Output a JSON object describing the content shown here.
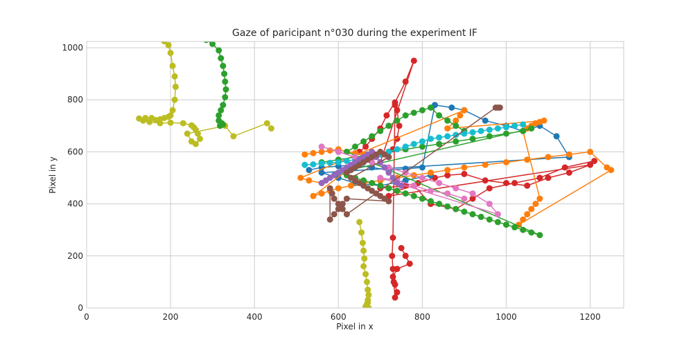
{
  "chart_data": {
    "type": "scatter",
    "title": "Gaze of paricipant n°030 during the experiment IF",
    "xlabel": "Pixel in x",
    "ylabel": "Pixel in y",
    "xlim": [
      0,
      1280
    ],
    "ylim": [
      0,
      1024
    ],
    "xticks": [
      0,
      200,
      400,
      600,
      800,
      1000,
      1200
    ],
    "yticks": [
      0,
      200,
      400,
      600,
      800,
      1000
    ],
    "grid": true,
    "markers": true,
    "lines": true,
    "series": [
      {
        "color": "#bcbd22",
        "x": [
          170,
          175,
          185,
          195,
          200,
          205,
          210,
          212,
          210,
          205,
          200,
          195,
          185,
          175,
          165,
          155,
          140,
          125,
          135,
          150,
          175,
          200,
          230,
          250,
          255,
          260,
          265,
          270,
          260,
          250,
          240,
          330,
          350,
          430,
          440
        ],
        "y": [
          1040,
          1035,
          1025,
          1010,
          980,
          930,
          890,
          850,
          800,
          760,
          740,
          735,
          730,
          725,
          722,
          730,
          730,
          728,
          720,
          715,
          710,
          712,
          710,
          702,
          695,
          685,
          670,
          650,
          630,
          640,
          670,
          700,
          660,
          710,
          690
        ]
      },
      {
        "color": "#2ca02c",
        "x": [
          270,
          285,
          300,
          315,
          320,
          325,
          328,
          330,
          332,
          330,
          325,
          320,
          315,
          315,
          318,
          322,
          325
        ],
        "y": [
          1040,
          1030,
          1015,
          990,
          960,
          930,
          900,
          870,
          840,
          810,
          780,
          760,
          740,
          720,
          700,
          710,
          705
        ]
      },
      {
        "color": "#bcbd22",
        "x": [
          650,
          655,
          658,
          660,
          662,
          660,
          665,
          668,
          670,
          672,
          670,
          668,
          665,
          668,
          670,
          672
        ],
        "y": [
          330,
          290,
          250,
          220,
          190,
          160,
          130,
          100,
          70,
          50,
          30,
          15,
          5,
          10,
          20,
          0
        ]
      },
      {
        "color": "#d62728",
        "x": [
          650,
          665,
          680,
          700,
          715,
          735,
          760,
          780,
          700,
          720,
          730,
          740,
          745,
          740,
          735,
          730,
          728,
          730,
          732,
          735
        ],
        "y": [
          600,
          620,
          650,
          690,
          740,
          790,
          870,
          950,
          560,
          580,
          610,
          650,
          700,
          760,
          780,
          270,
          200,
          150,
          100,
          40
        ]
      },
      {
        "color": "#d62728",
        "x": [
          700,
          760,
          790,
          830,
          860,
          900,
          950,
          1000,
          1050,
          1100,
          1150,
          1200,
          720,
          740,
          780,
          820,
          880,
          920,
          960,
          1020,
          1080,
          1140,
          1210
        ],
        "y": [
          460,
          470,
          480,
          500,
          510,
          515,
          490,
          480,
          470,
          500,
          520,
          550,
          430,
          450,
          470,
          400,
          380,
          420,
          460,
          480,
          500,
          540,
          565
        ]
      },
      {
        "color": "#d62728",
        "x": [
          750,
          760,
          770,
          740,
          730,
          735,
          740
        ],
        "y": [
          230,
          200,
          170,
          150,
          120,
          90,
          60
        ]
      },
      {
        "color": "#1f77b4",
        "x": [
          530,
          560,
          600,
          640,
          680,
          720,
          760,
          800,
          830,
          870,
          900,
          950,
          1000,
          1040,
          1080,
          1120,
          1150,
          560,
          600,
          640,
          700,
          760,
          820
        ],
        "y": [
          530,
          540,
          545,
          550,
          540,
          530,
          535,
          540,
          780,
          770,
          760,
          720,
          700,
          680,
          700,
          660,
          580,
          520,
          500,
          480,
          470,
          490,
          510
        ]
      },
      {
        "color": "#ff7f0e",
        "x": [
          520,
          540,
          560,
          580,
          600,
          620,
          640,
          660,
          680,
          540,
          560,
          580,
          600,
          630,
          660,
          700,
          740,
          780,
          820,
          860,
          900,
          950,
          1000,
          1050,
          1100,
          1150,
          1200,
          1240,
          1250,
          1030,
          1040,
          1050,
          1060,
          1070,
          1080,
          1040,
          1050,
          1060,
          1070,
          1080,
          1090,
          860,
          880,
          890,
          900,
          510,
          530,
          560
        ],
        "y": [
          590,
          595,
          600,
          605,
          610,
          600,
          595,
          590,
          600,
          430,
          440,
          450,
          460,
          470,
          480,
          490,
          500,
          510,
          520,
          530,
          540,
          550,
          560,
          570,
          580,
          590,
          600,
          540,
          530,
          320,
          340,
          360,
          380,
          400,
          420,
          680,
          690,
          700,
          710,
          715,
          720,
          690,
          720,
          740,
          760,
          500,
          490,
          480
        ]
      },
      {
        "color": "#2ca02c",
        "x": [
          560,
          600,
          640,
          680,
          720,
          760,
          800,
          840,
          880,
          920,
          960,
          1000,
          1040,
          1060,
          600,
          620,
          640,
          660,
          680,
          700,
          720,
          740,
          760,
          780,
          800,
          820,
          840,
          860,
          880,
          900,
          920,
          940,
          960,
          980,
          1000,
          1020,
          1040,
          1060,
          1080,
          620,
          640,
          660,
          680,
          700,
          720,
          740,
          760,
          780,
          800,
          820,
          840,
          860,
          880,
          900
        ],
        "y": [
          560,
          570,
          580,
          590,
          600,
          610,
          620,
          630,
          640,
          650,
          660,
          670,
          680,
          690,
          520,
          510,
          500,
          490,
          480,
          470,
          460,
          450,
          440,
          430,
          420,
          410,
          400,
          390,
          380,
          370,
          360,
          350,
          340,
          330,
          320,
          310,
          300,
          290,
          280,
          600,
          620,
          640,
          660,
          680,
          700,
          720,
          740,
          750,
          760,
          770,
          740,
          720,
          700,
          680
        ]
      },
      {
        "color": "#17becf",
        "x": [
          520,
          540,
          560,
          580,
          600,
          620,
          640,
          660,
          680,
          700,
          720,
          740,
          760,
          780,
          800,
          820,
          840,
          860,
          880,
          900,
          920,
          940,
          960,
          980,
          1000,
          1020,
          1040
        ],
        "y": [
          550,
          552,
          555,
          558,
          560,
          565,
          570,
          575,
          580,
          590,
          600,
          610,
          620,
          630,
          640,
          650,
          655,
          660,
          665,
          670,
          675,
          680,
          685,
          690,
          695,
          700,
          705
        ]
      },
      {
        "color": "#e377c2",
        "x": [
          560,
          600,
          640,
          680,
          720,
          760,
          800,
          840,
          880,
          920,
          960,
          980,
          700,
          740,
          780,
          820,
          860,
          900
        ],
        "y": [
          620,
          600,
          580,
          560,
          540,
          520,
          500,
          480,
          460,
          440,
          400,
          360,
          500,
          490,
          470,
          450,
          440,
          420
        ]
      },
      {
        "color": "#9467bd",
        "x": [
          560,
          570,
          580,
          590,
          600,
          610,
          620,
          630,
          640,
          650,
          660,
          670,
          680,
          690,
          700,
          710,
          720,
          730,
          740,
          750
        ],
        "y": [
          480,
          490,
          500,
          510,
          520,
          530,
          540,
          550,
          560,
          570,
          580,
          590,
          600,
          580,
          560,
          540,
          520,
          500,
          480,
          470
        ]
      },
      {
        "color": "#8c564b",
        "x": [
          620,
          630,
          640,
          650,
          660,
          670,
          680,
          690,
          700,
          710,
          720,
          630,
          640,
          650,
          660,
          670,
          680,
          690,
          700,
          710,
          720,
          620,
          610,
          600,
          590,
          580,
          580,
          585,
          590,
          600,
          610,
          620,
          975,
          980,
          985
        ],
        "y": [
          520,
          530,
          540,
          550,
          560,
          570,
          580,
          590,
          600,
          590,
          580,
          500,
          490,
          480,
          470,
          460,
          450,
          440,
          430,
          420,
          410,
          420,
          400,
          380,
          360,
          340,
          460,
          440,
          420,
          400,
          380,
          360,
          770,
          770,
          770
        ]
      }
    ]
  }
}
